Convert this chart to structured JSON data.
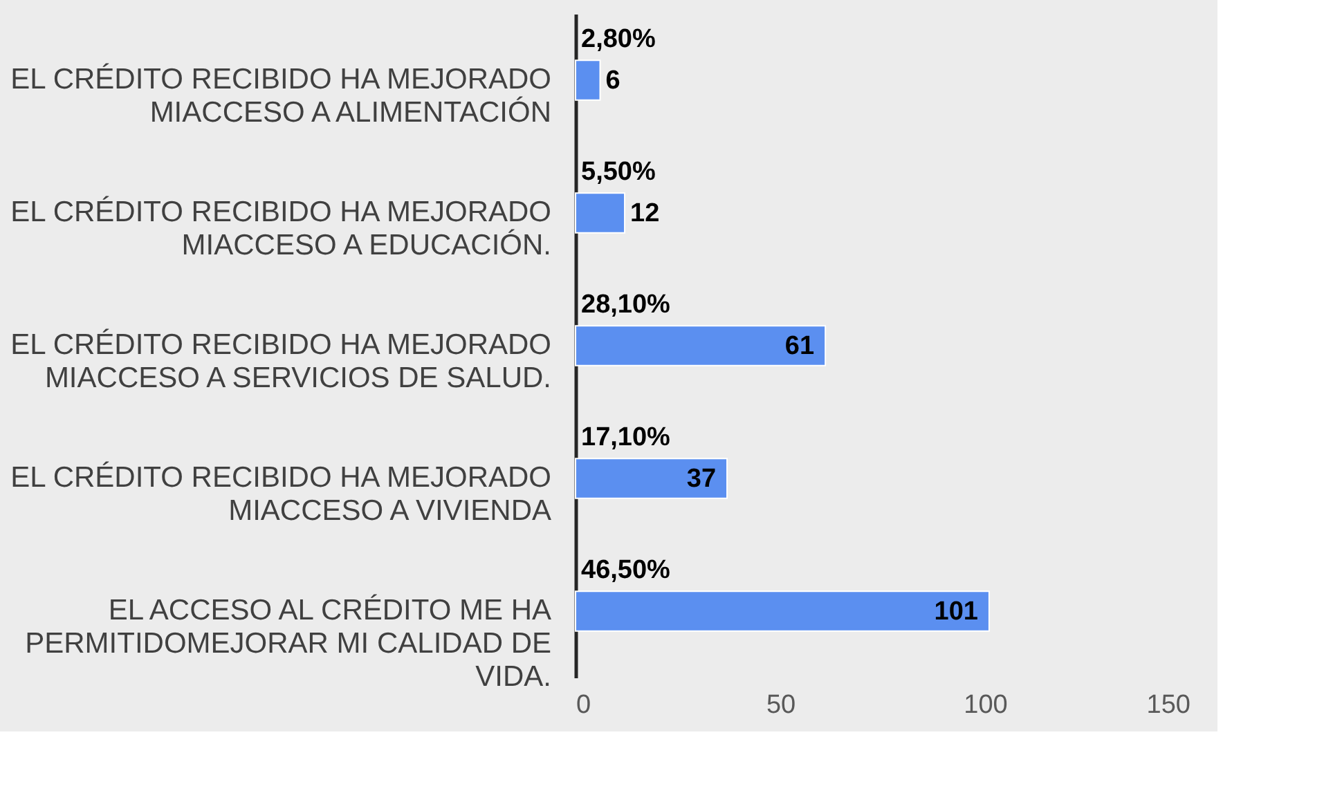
{
  "chart_data": {
    "type": "bar",
    "orientation": "horizontal",
    "categories": [
      "EL CRÉDITO RECIBIDO HA MEJORADO MIACCESO A ALIMENTACIÓN",
      "EL CRÉDITO RECIBIDO HA MEJORADO MIACCESO A EDUCACIÓN.",
      "EL CRÉDITO RECIBIDO HA MEJORADO MIACCESO A SERVICIOS DE SALUD.",
      "EL CRÉDITO RECIBIDO HA MEJORADO MIACCESO A VIVIENDA",
      "EL ACCESO AL CRÉDITO ME HA PERMITIDOMEJORAR MI CALIDAD DE VIDA."
    ],
    "values": [
      6,
      12,
      61,
      37,
      101
    ],
    "color": "#5b8ff0",
    "data_labels": true,
    "xlim": [
      0,
      150
    ],
    "xticks": [
      0,
      50,
      100,
      150
    ],
    "grid": false,
    "annotations": [
      "2,80%",
      "5,50%",
      "28,10%",
      "17,10%",
      "46,50%"
    ]
  }
}
